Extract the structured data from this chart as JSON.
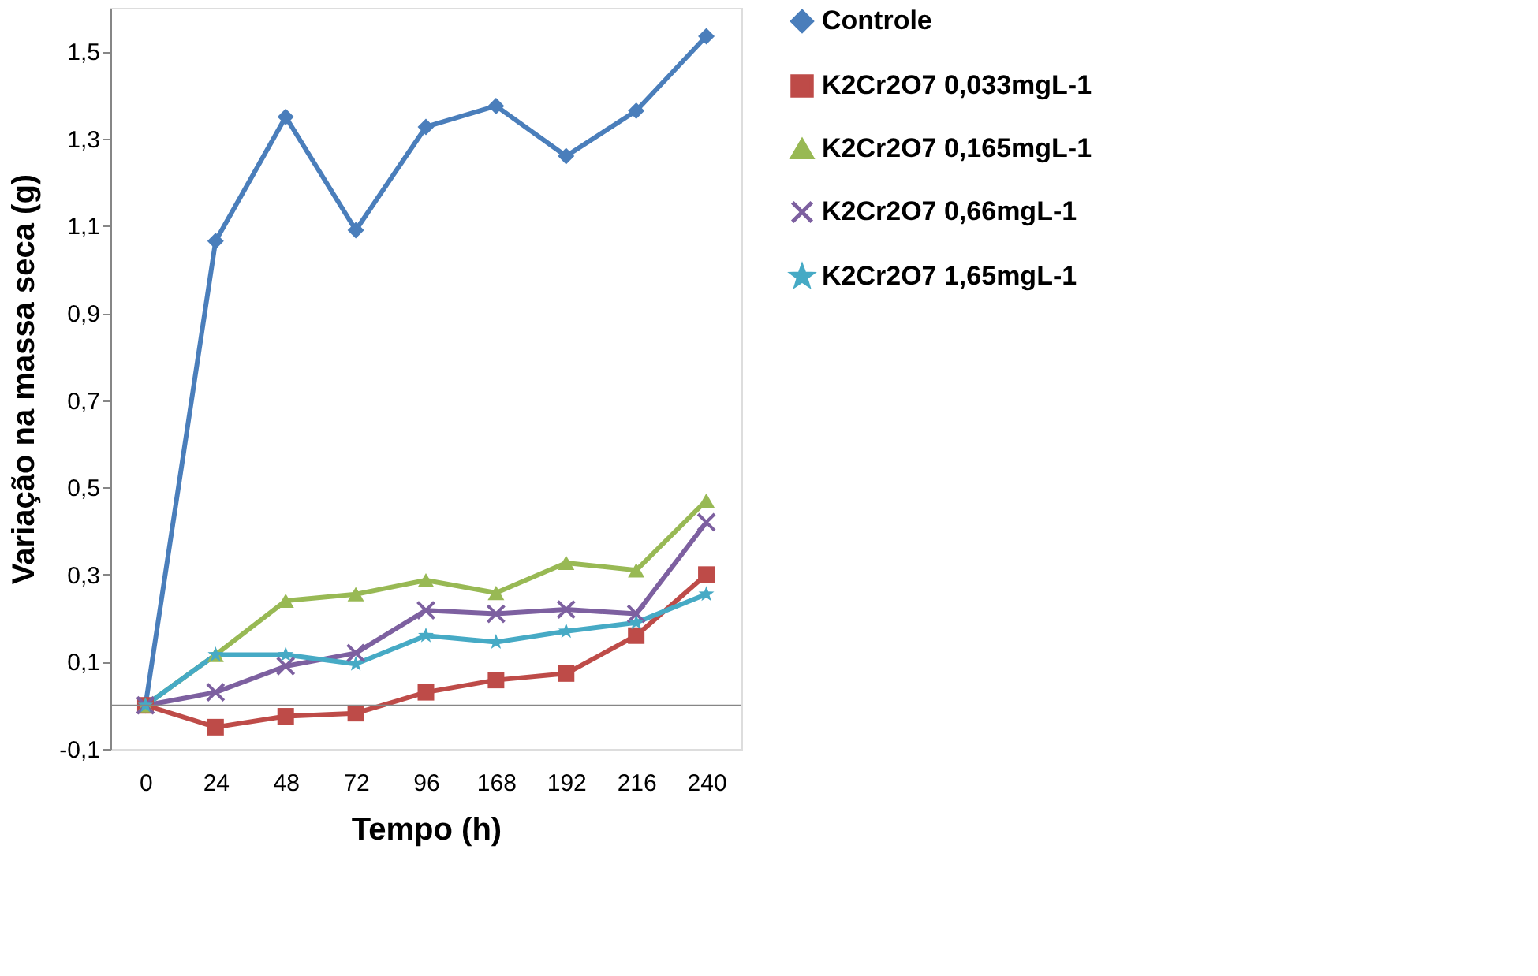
{
  "chart_data": {
    "type": "line",
    "xlabel": "Tempo (h)",
    "ylabel": "Variação na massa seca  (g)",
    "categories": [
      "0",
      "24",
      "48",
      "72",
      "96",
      "168",
      "192",
      "216",
      "240"
    ],
    "ylim": [
      -0.1,
      1.6
    ],
    "yticks": [
      {
        "value": -0.1,
        "label": "-0,1"
      },
      {
        "value": 0.1,
        "label": "0,1"
      },
      {
        "value": 0.3,
        "label": "0,3"
      },
      {
        "value": 0.5,
        "label": "0,5"
      },
      {
        "value": 0.7,
        "label": "0,7"
      },
      {
        "value": 0.9,
        "label": "0,9"
      },
      {
        "value": 1.1,
        "label": "1,1"
      },
      {
        "value": 1.3,
        "label": "1,3"
      },
      {
        "value": 1.5,
        "label": "1,5"
      }
    ],
    "ref_lines": [
      {
        "axis": "y",
        "value": 0,
        "color": "#868686"
      }
    ],
    "grid": false,
    "legend": "right",
    "series": [
      {
        "name": "Controle",
        "color": "#4a7ebb",
        "marker": "diamond",
        "values": [
          0,
          1.065,
          1.35,
          1.09,
          1.327,
          1.375,
          1.26,
          1.364,
          1.535
        ]
      },
      {
        "name": "K2Cr2O7 0,033mgL-1",
        "color": "#be4b48",
        "marker": "square",
        "values": [
          0,
          -0.05,
          -0.025,
          -0.018,
          0.03,
          0.058,
          0.073,
          0.16,
          0.3
        ]
      },
      {
        "name": "K2Cr2O7  0,165mgL-1",
        "color": "#98b954",
        "marker": "triangle",
        "values": [
          0,
          0.116,
          0.24,
          0.255,
          0.287,
          0.258,
          0.327,
          0.31,
          0.47
        ]
      },
      {
        "name": "K2Cr2O7 0,66mgL-1",
        "color": "#7d60a0",
        "marker": "cross",
        "values": [
          0,
          0.03,
          0.09,
          0.12,
          0.218,
          0.21,
          0.22,
          0.21,
          0.42
        ]
      },
      {
        "name": "K2Cr2O7 1,65mgL-1",
        "color": "#46aac5",
        "marker": "star",
        "values": [
          0,
          0.116,
          0.116,
          0.095,
          0.16,
          0.145,
          0.17,
          0.19,
          0.255
        ]
      }
    ]
  }
}
